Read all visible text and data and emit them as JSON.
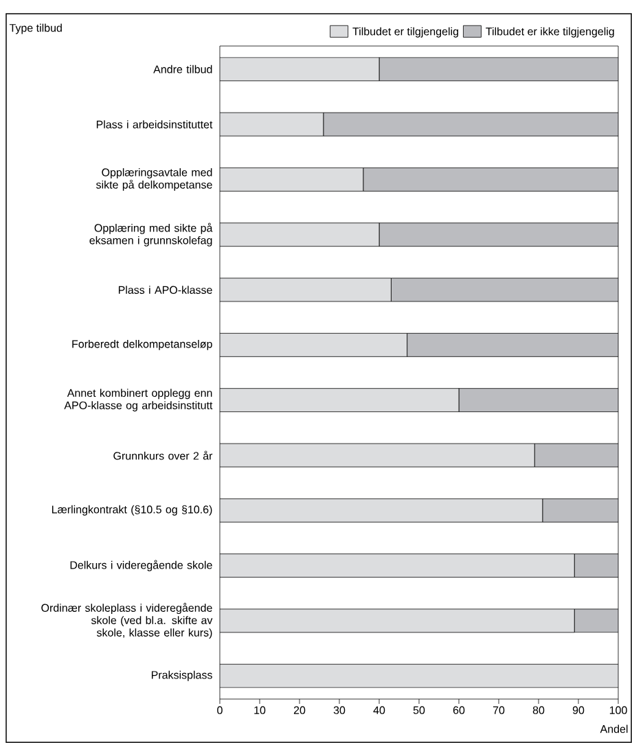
{
  "chart_data": {
    "type": "bar",
    "orientation": "horizontal",
    "stacked": true,
    "ylabel": "Type tilbud",
    "xlabel": "Andel",
    "legend": "top",
    "categories": [
      "Andre tilbud",
      "Plass i arbeidsinstituttet",
      "Opplæringsavtale med sikte på delkompetanse",
      "Opplæring med sikte på eksamen i grunnskolefag",
      "Plass i APO-klasse",
      "Forberedt delkompetanseløp",
      "Annet kombinert opplegg enn APO-klasse og arbeidsinstitutt",
      "Grunnkurs over 2 år",
      "Lærlingkontrakt (§10.5 og §10.6)",
      "Delkurs i videregående skole",
      "Ordinær skoleplass i videregående skole (ved bl.a. skifte av skole, klasse eller kurs)",
      "Praksisplass"
    ],
    "series": [
      {
        "name": "Tilbudet er tilgjengelig",
        "color": "#dcdddf",
        "values": [
          40,
          26,
          36,
          40,
          43,
          47,
          60,
          79,
          81,
          89,
          89,
          100
        ]
      },
      {
        "name": "Tilbudet er ikke tilgjengelig",
        "color": "#bbbcc0",
        "values": [
          60,
          74,
          64,
          60,
          57,
          53,
          40,
          21,
          19,
          11,
          11,
          0
        ]
      }
    ],
    "xlim": [
      0,
      100
    ],
    "xticks": [
      0,
      10,
      20,
      30,
      40,
      50,
      60,
      70,
      80,
      90,
      100
    ]
  }
}
